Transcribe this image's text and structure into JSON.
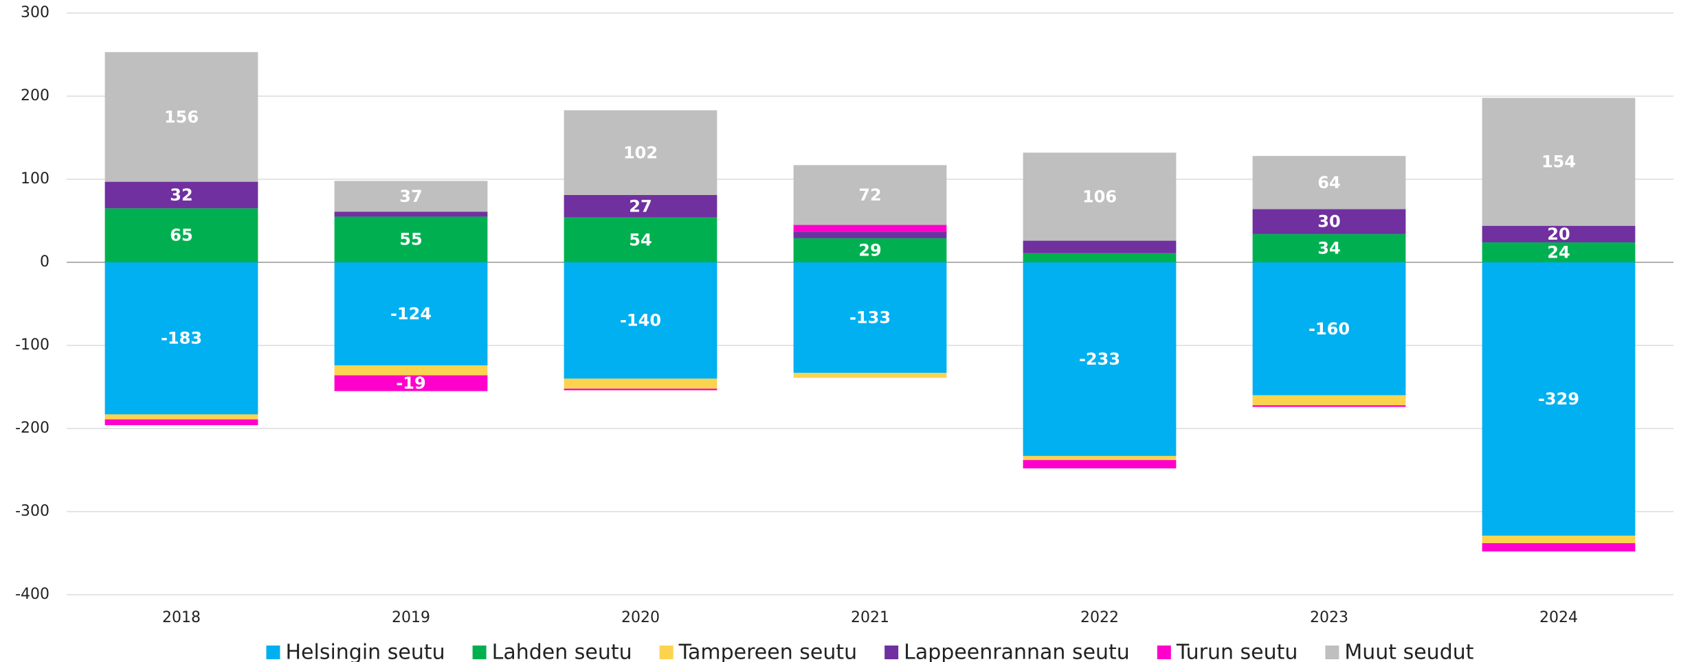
{
  "chart_data": {
    "type": "stacked_bar",
    "categories": [
      "2018",
      "2019",
      "2020",
      "2021",
      "2022",
      "2023",
      "2024"
    ],
    "series": [
      {
        "name": "Helsingin seutu",
        "color": "#00b0f0",
        "values": [
          -183,
          -124,
          -140,
          -133,
          -233,
          -160,
          -329
        ]
      },
      {
        "name": "Lahden seutu",
        "color": "#00b050",
        "values": [
          65,
          55,
          54,
          29,
          11,
          34,
          24
        ]
      },
      {
        "name": "Tampereen seutu",
        "color": "#fcd34f",
        "values": [
          -6,
          -12,
          -12,
          -6,
          -5,
          -12,
          -9
        ]
      },
      {
        "name": "Lappeenrannan seutu",
        "color": "#7030a0",
        "values": [
          32,
          6,
          27,
          8,
          15,
          30,
          20
        ]
      },
      {
        "name": "Turun seutu",
        "color": "#ff00cc",
        "values": [
          -7,
          -19,
          -2,
          8,
          -10,
          -2,
          -10
        ]
      },
      {
        "name": "Muut seudut",
        "color": "#bfbfbf",
        "values": [
          156,
          37,
          102,
          72,
          106,
          64,
          154
        ]
      }
    ],
    "ylim": [
      -400,
      300
    ],
    "yticks": [
      -400,
      -300,
      -200,
      -100,
      0,
      100,
      200,
      300
    ],
    "grid": true,
    "legend": "bottom"
  }
}
